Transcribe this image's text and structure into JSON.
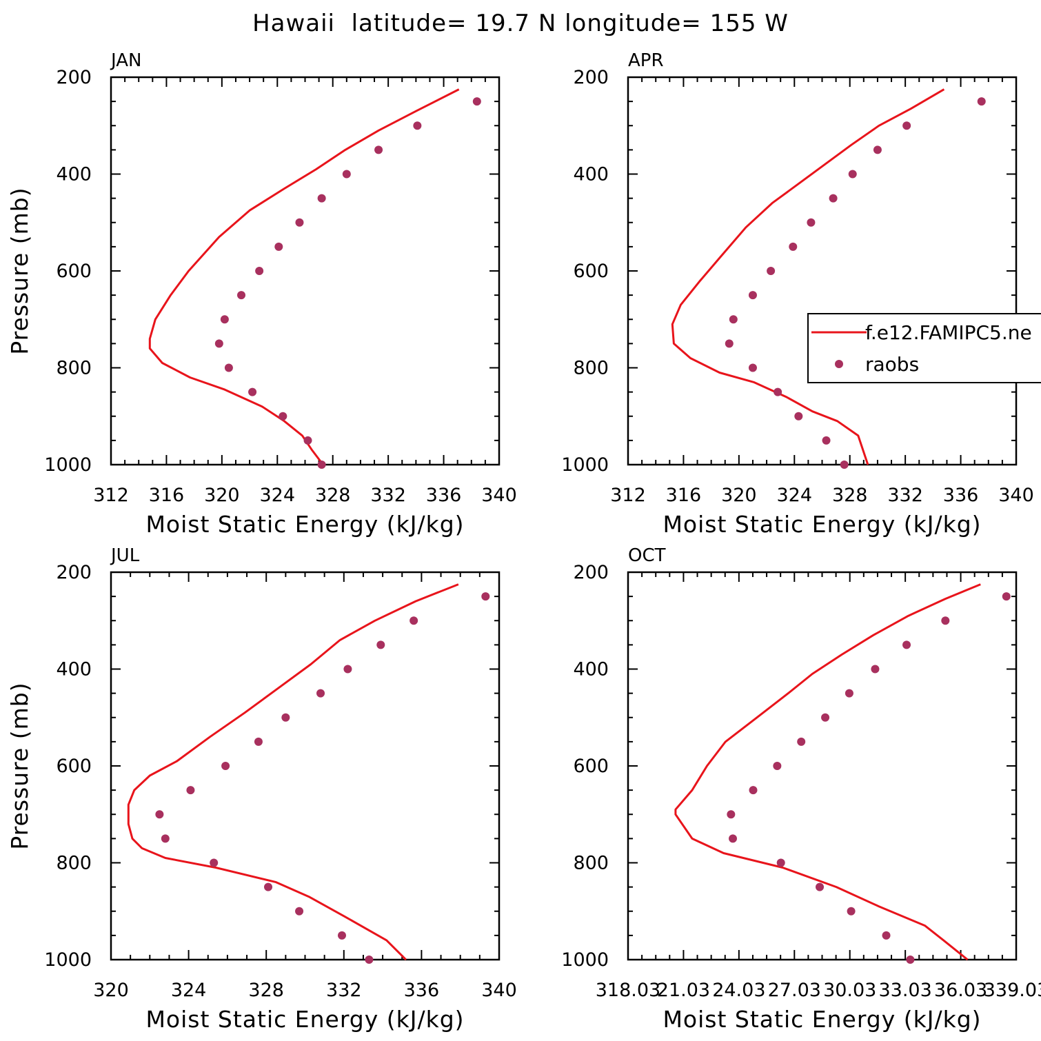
{
  "title": "Hawaii  latitude= 19.7 N longitude= 155 W",
  "legend": {
    "model_label": "f.e12.FAMIPC5.ne",
    "obs_label": "raobs"
  },
  "colors": {
    "model": "#e8141b",
    "obs": "#a8305e"
  },
  "chart_data": [
    {
      "type": "line",
      "panel_label": "JAN",
      "xlabel": "Moist Static Energy (kJ/kg)",
      "ylabel": "Pressure (mb)",
      "xlim": [
        312,
        340
      ],
      "ylim": [
        1000,
        200
      ],
      "x_ticks": [
        "312",
        "316",
        "320",
        "324",
        "328",
        "332",
        "336",
        "340"
      ],
      "y_ticks": [
        "200",
        "400",
        "600",
        "800",
        "1000"
      ],
      "model": {
        "x": [
          337.1,
          334.0,
          331.3,
          328.9,
          326.8,
          324.5,
          322.0,
          319.8,
          317.6,
          316.3,
          315.2,
          314.8,
          314.8,
          315.7,
          317.7,
          320.2,
          322.9,
          324.5,
          325.8,
          326.5,
          327.3
        ],
        "p": [
          225,
          270,
          310,
          350,
          390,
          430,
          475,
          530,
          600,
          650,
          700,
          740,
          760,
          790,
          820,
          845,
          880,
          910,
          940,
          970,
          1000
        ]
      },
      "obs": {
        "x": [
          338.4,
          334.1,
          331.3,
          329.0,
          327.2,
          325.6,
          324.1,
          322.7,
          321.4,
          320.2,
          319.8,
          320.5,
          322.2,
          324.4,
          326.2,
          327.2
        ],
        "p": [
          250,
          300,
          350,
          400,
          450,
          500,
          550,
          600,
          650,
          700,
          750,
          800,
          850,
          900,
          950,
          1000
        ]
      }
    },
    {
      "type": "line",
      "panel_label": "APR",
      "xlabel": "Moist Static Energy (kJ/kg)",
      "ylabel": "",
      "xlim": [
        312,
        340
      ],
      "ylim": [
        1000,
        200
      ],
      "x_ticks": [
        "312",
        "316",
        "320",
        "324",
        "328",
        "332",
        "336",
        "340"
      ],
      "y_ticks": [
        "200",
        "400",
        "600",
        "800",
        "1000"
      ],
      "model": {
        "x": [
          334.8,
          332.4,
          330.1,
          328.1,
          326.2,
          324.3,
          322.4,
          320.5,
          318.7,
          317.2,
          315.8,
          315.2,
          315.3,
          316.5,
          318.6,
          321.1,
          323.4,
          325.3,
          327.1,
          328.6,
          329.3
        ],
        "p": [
          225,
          265,
          300,
          340,
          380,
          420,
          460,
          510,
          570,
          620,
          670,
          710,
          750,
          780,
          810,
          830,
          860,
          890,
          910,
          940,
          1000
        ]
      },
      "obs": {
        "x": [
          337.5,
          332.1,
          330.0,
          328.2,
          326.8,
          325.2,
          323.9,
          322.3,
          321.0,
          319.6,
          319.3,
          321.0,
          322.8,
          324.3,
          326.3,
          327.6
        ],
        "p": [
          250,
          300,
          350,
          400,
          450,
          500,
          550,
          600,
          650,
          700,
          750,
          800,
          850,
          900,
          950,
          1000
        ]
      }
    },
    {
      "type": "line",
      "panel_label": "JUL",
      "xlabel": "Moist Static Energy (kJ/kg)",
      "ylabel": "Pressure (mb)",
      "xlim": [
        320,
        340
      ],
      "ylim": [
        1000,
        200
      ],
      "x_ticks": [
        "320",
        "324",
        "328",
        "332",
        "336",
        "340"
      ],
      "y_ticks": [
        "200",
        "400",
        "600",
        "800",
        "1000"
      ],
      "model": {
        "x": [
          337.9,
          335.7,
          333.6,
          331.8,
          330.3,
          328.6,
          326.9,
          325.1,
          323.4,
          322.0,
          321.2,
          320.9,
          320.9,
          321.1,
          321.6,
          322.8,
          325.4,
          328.5,
          330.2,
          332.0,
          334.2,
          335.2
        ],
        "p": [
          225,
          260,
          300,
          340,
          390,
          440,
          490,
          540,
          590,
          620,
          650,
          680,
          720,
          750,
          770,
          790,
          810,
          840,
          870,
          910,
          960,
          1000
        ]
      },
      "obs": {
        "x": [
          339.3,
          335.6,
          333.9,
          332.2,
          330.8,
          329.0,
          327.6,
          325.9,
          324.1,
          322.5,
          322.8,
          325.3,
          328.1,
          329.7,
          331.9,
          333.3
        ],
        "p": [
          250,
          300,
          350,
          400,
          450,
          500,
          550,
          600,
          650,
          700,
          750,
          800,
          850,
          900,
          950,
          1000
        ]
      }
    },
    {
      "type": "line",
      "panel_label": "OCT",
      "xlabel": "Moist Static Energy (kJ/kg)",
      "ylabel": "",
      "xlim": [
        318.03,
        339.03
      ],
      "ylim": [
        1000,
        200
      ],
      "x_ticks": [
        "318.03",
        "21.03",
        "24.03",
        "27.03",
        "30.03",
        "33.03",
        "36.03",
        "339.03"
      ],
      "y_ticks": [
        "200",
        "400",
        "600",
        "800",
        "1000"
      ],
      "model": {
        "x": [
          337.1,
          335.2,
          333.2,
          331.3,
          329.6,
          328.0,
          326.7,
          325.0,
          323.3,
          322.3,
          321.5,
          320.6,
          320.6,
          321.5,
          323.2,
          326.4,
          329.3,
          331.6,
          334.1,
          335.1,
          336.4
        ],
        "p": [
          225,
          255,
          290,
          330,
          370,
          410,
          450,
          500,
          550,
          600,
          650,
          690,
          700,
          750,
          780,
          810,
          850,
          890,
          930,
          960,
          1000
        ]
      },
      "obs": {
        "x": [
          338.5,
          335.2,
          333.1,
          331.4,
          330.0,
          328.7,
          327.4,
          326.1,
          324.8,
          323.6,
          323.7,
          326.3,
          328.4,
          330.1,
          332.0,
          333.3
        ],
        "p": [
          250,
          300,
          350,
          400,
          450,
          500,
          550,
          600,
          650,
          700,
          750,
          800,
          850,
          900,
          950,
          1000
        ]
      }
    }
  ]
}
